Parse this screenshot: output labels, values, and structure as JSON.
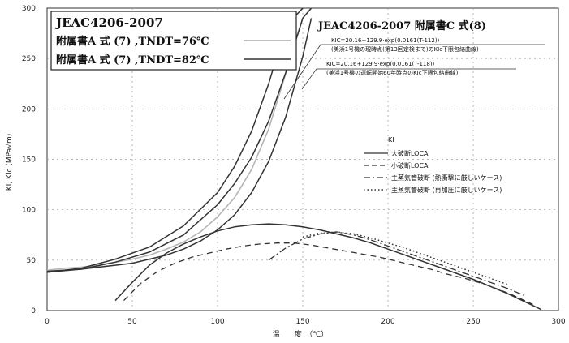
{
  "chart_data": {
    "type": "line",
    "xlabel": "温　　度　（℃）",
    "ylabel": "KI, KIc (MPa√m)",
    "xlim": [
      0,
      300
    ],
    "ylim": [
      0,
      300
    ],
    "x_ticks": [
      "0",
      "50",
      "100",
      "150",
      "200",
      "250",
      "300"
    ],
    "y_ticks": [
      "0",
      "50",
      "100",
      "150",
      "200",
      "250",
      "300"
    ],
    "box_title": "JEAC4206-2007",
    "box_line1": "附属書A 式 (7) ,TNDT=76℃",
    "box_line2": "附属書A 式 (7) ,TNDT=82℃",
    "right_title": "JEAC4206-2007 附属書C 式(8)",
    "annot1_formula": "KIC=20.16+129.9·exp(0.0161(T-112))",
    "annot1_note": "(美浜1号機の現時点(第13回定検まで)のKIc下限包絡曲線)",
    "annot2_formula": "KIC=20.16+129.9·exp(0.0161(T-118))",
    "annot2_note": "(美浜1号機の運転開始60年時点のKIc下限包絡曲線)",
    "legend_title": "KI",
    "legend_items": [
      "大破断LOCA",
      "小破断LOCA",
      "主蒸気管破断 (熱衝撃に厳しいケース)",
      "主蒸気管破断 (再加圧に厳しいケース)"
    ],
    "series": [
      {
        "name": "附属書A 式 (7) ,TNDT=76℃",
        "style": "solid-gray",
        "x": [
          0,
          10,
          20,
          30,
          40,
          50,
          60,
          70,
          80,
          90,
          100,
          110,
          120,
          130,
          140,
          150,
          155
        ],
        "y": [
          40,
          42,
          43,
          45,
          48,
          51,
          55,
          61,
          68,
          78,
          93,
          112,
          140,
          180,
          235,
          290,
          300
        ]
      },
      {
        "name": "附属書A 式 (7) ,TNDT=82℃",
        "style": "solid",
        "x": [
          0,
          10,
          20,
          30,
          40,
          50,
          60,
          70,
          80,
          90,
          100,
          110,
          120,
          130,
          140,
          150,
          155
        ],
        "y": [
          39,
          40,
          41,
          43,
          45,
          47,
          51,
          55,
          61,
          69,
          80,
          95,
          117,
          148,
          192,
          252,
          290
        ]
      },
      {
        "name": "KIc 現時点 (第13回定検まで)",
        "style": "solid",
        "x": [
          0,
          20,
          40,
          60,
          80,
          100,
          110,
          120,
          130,
          140,
          150
        ],
        "y": [
          38,
          42,
          51,
          63,
          84,
          117,
          143,
          178,
          225,
          282,
          300
        ]
      },
      {
        "name": "KIc 運転開始60年時点",
        "style": "solid",
        "x": [
          0,
          20,
          40,
          60,
          80,
          100,
          110,
          120,
          130,
          140,
          150,
          155
        ],
        "y": [
          38,
          41,
          48,
          58,
          75,
          105,
          126,
          152,
          188,
          236,
          290,
          300
        ]
      },
      {
        "name": "大破断LOCA",
        "style": "solid",
        "x": [
          40,
          50,
          60,
          70,
          80,
          90,
          100,
          110,
          120,
          130,
          140,
          150,
          160,
          170,
          180,
          190,
          200,
          210,
          220,
          230,
          240,
          250,
          260,
          270,
          280,
          290
        ],
        "y": [
          10,
          28,
          45,
          57,
          66,
          73,
          79,
          83,
          85,
          86,
          85,
          83,
          80,
          76,
          72,
          67,
          61,
          55,
          49,
          43,
          37,
          31,
          24,
          17,
          9,
          1
        ]
      },
      {
        "name": "小破断LOCA",
        "style": "dashed",
        "x": [
          45,
          55,
          65,
          75,
          85,
          95,
          105,
          115,
          125,
          135,
          145,
          155,
          165,
          175,
          185,
          195,
          205,
          215,
          225,
          235,
          245,
          255,
          265,
          275,
          285
        ],
        "y": [
          10,
          27,
          39,
          47,
          53,
          57,
          61,
          64,
          66,
          67,
          67,
          65,
          62,
          59,
          56,
          53,
          49,
          45,
          41,
          36,
          32,
          27,
          21,
          14,
          6
        ]
      },
      {
        "name": "主蒸気管破断 (熱衝撃に厳しいケース)",
        "style": "dash-dot",
        "x": [
          130,
          140,
          150,
          160,
          170,
          180,
          190,
          200,
          210,
          220,
          230,
          240,
          250,
          260,
          270,
          280
        ],
        "y": [
          50,
          62,
          71,
          76,
          78,
          75,
          70,
          64,
          58,
          52,
          46,
          40,
          34,
          28,
          22,
          15
        ]
      },
      {
        "name": "主蒸気管破断 (再加圧に厳しいケース)",
        "style": "dotted",
        "x": [
          150,
          160,
          170,
          180,
          190,
          200,
          210,
          220,
          230,
          240,
          250,
          260,
          270
        ],
        "y": [
          73,
          77,
          78,
          76,
          72,
          67,
          62,
          56,
          50,
          44,
          38,
          32,
          26
        ]
      }
    ]
  }
}
